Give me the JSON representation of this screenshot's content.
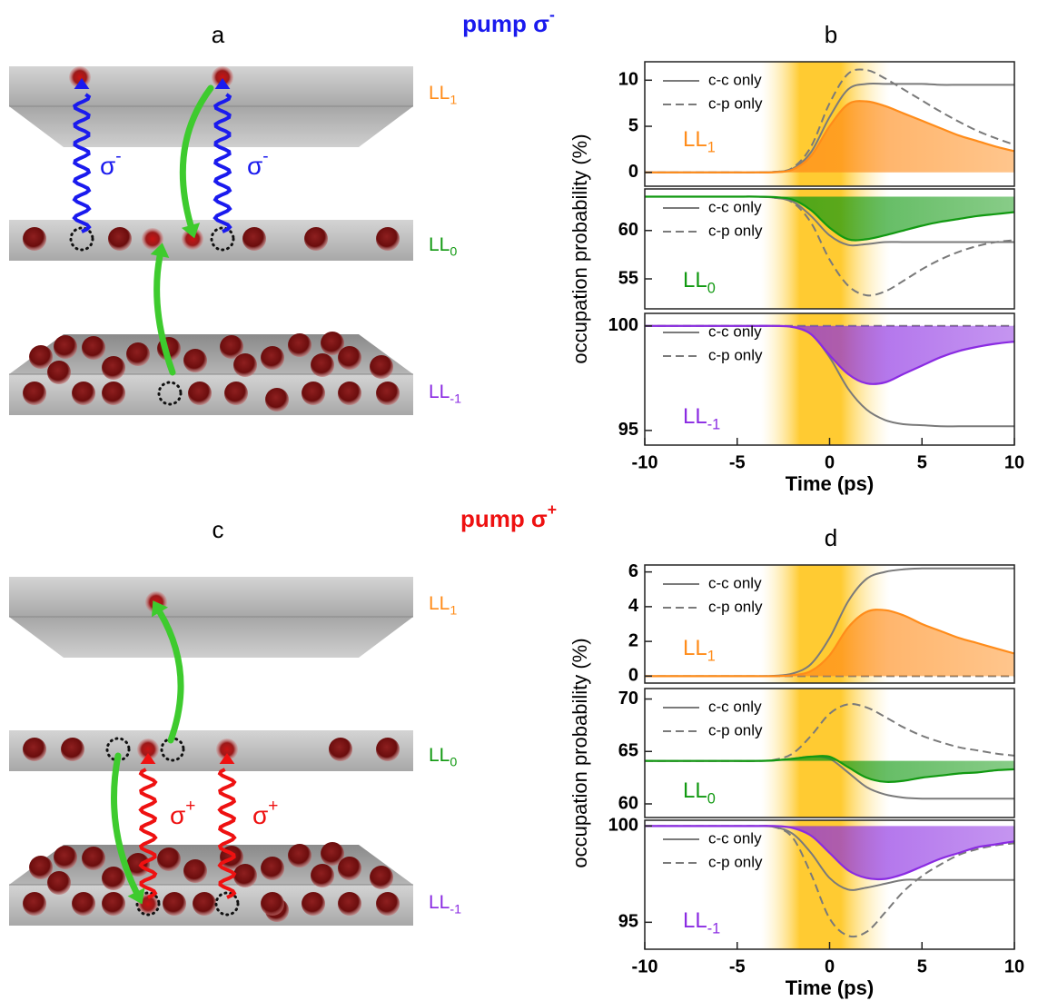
{
  "schematics": [
    {
      "panel": "a",
      "pump": {
        "text": "pump σ",
        "sup": "-"
      },
      "color": "#1a1aee",
      "levels": [
        {
          "text": "LL",
          "sub": "1",
          "color": "#ff8c1a"
        },
        {
          "text": "LL",
          "sub": "0",
          "color": "#119911"
        },
        {
          "text": "LL",
          "sub": "-1",
          "color": "#8a2be2"
        }
      ],
      "transitions": [
        {
          "text": "σ",
          "sup": "-"
        },
        {
          "text": "σ",
          "sup": "-"
        }
      ]
    },
    {
      "panel": "c",
      "pump": {
        "text": "pump σ",
        "sup": "+"
      },
      "color": "#ee1111",
      "levels": [
        {
          "text": "LL",
          "sub": "1",
          "color": "#ff8c1a"
        },
        {
          "text": "LL",
          "sub": "0",
          "color": "#119911"
        },
        {
          "text": "LL",
          "sub": "-1",
          "color": "#8a2be2"
        }
      ],
      "transitions": [
        {
          "text": "σ",
          "sup": "+"
        },
        {
          "text": "σ",
          "sup": "+"
        }
      ]
    }
  ],
  "chart_data": [
    {
      "type": "line",
      "title": "b",
      "x": [
        -10,
        -9,
        -8,
        -7,
        -6,
        -5,
        -4,
        -3,
        -2,
        -1,
        0,
        1,
        2,
        3,
        4,
        5,
        6,
        7,
        8,
        9,
        10
      ],
      "xlim": [
        -10,
        10
      ],
      "ylim": [
        -1.5,
        12
      ],
      "yticks": [
        0,
        5,
        10
      ],
      "label": {
        "text": "LL",
        "sub": "1"
      },
      "series": [
        {
          "name": "c-c only",
          "color": "#7a7a7a",
          "values": [
            0,
            0,
            0,
            0,
            0,
            0,
            0,
            0.05,
            0.4,
            2.2,
            6.0,
            9.0,
            9.6,
            9.6,
            9.6,
            9.6,
            9.5,
            9.5,
            9.5,
            9.5,
            9.5
          ]
        },
        {
          "name": "c-p only",
          "color": "#7a7a7a",
          "dash": true,
          "values": [
            0,
            0,
            0,
            0,
            0,
            0,
            0,
            0.05,
            0.5,
            2.8,
            7.5,
            10.7,
            11.1,
            10.2,
            9.0,
            7.8,
            6.6,
            5.5,
            4.5,
            3.7,
            3.0
          ]
        },
        {
          "color": "#ff8c1a",
          "fill": true,
          "values": [
            0,
            0,
            0,
            0,
            0,
            0,
            0,
            0.02,
            0.3,
            1.8,
            5.0,
            7.4,
            7.7,
            7.2,
            6.4,
            5.6,
            4.8,
            4.0,
            3.4,
            2.8,
            2.3
          ]
        }
      ]
    },
    {
      "type": "line",
      "x": [
        -10,
        -9,
        -8,
        -7,
        -6,
        -5,
        -4,
        -3,
        -2,
        -1,
        0,
        1,
        2,
        3,
        4,
        5,
        6,
        7,
        8,
        9,
        10
      ],
      "xlim": [
        -10,
        10
      ],
      "ylim": [
        51.9,
        64.3
      ],
      "yticks": [
        55,
        60
      ],
      "ylabel": "occupation probability (%)",
      "label": {
        "text": "LL",
        "sub": "0"
      },
      "series": [
        {
          "name": "c-c only",
          "color": "#7a7a7a",
          "values": [
            63.5,
            63.5,
            63.5,
            63.5,
            63.5,
            63.5,
            63.5,
            63.4,
            63.0,
            61.5,
            59.5,
            58.5,
            58.6,
            58.8,
            58.8,
            58.8,
            58.8,
            58.8,
            58.8,
            58.8,
            58.8
          ]
        },
        {
          "name": "c-p only",
          "color": "#7a7a7a",
          "dash": true,
          "values": [
            63.5,
            63.5,
            63.5,
            63.5,
            63.5,
            63.5,
            63.5,
            63.4,
            62.9,
            60.8,
            57.0,
            54.3,
            53.3,
            53.7,
            54.8,
            56.0,
            57.0,
            57.8,
            58.4,
            58.8,
            59.0
          ]
        },
        {
          "color": "#119911",
          "fill": true,
          "values": [
            63.5,
            63.5,
            63.5,
            63.5,
            63.5,
            63.5,
            63.5,
            63.45,
            63.2,
            62.1,
            60.3,
            59.1,
            59.1,
            59.5,
            60.0,
            60.5,
            60.9,
            61.2,
            61.5,
            61.7,
            61.9
          ]
        }
      ]
    },
    {
      "type": "line",
      "x": [
        -10,
        -9,
        -8,
        -7,
        -6,
        -5,
        -4,
        -3,
        -2,
        -1,
        0,
        1,
        2,
        3,
        4,
        5,
        6,
        7,
        8,
        9,
        10
      ],
      "xlim": [
        -10,
        10
      ],
      "ylim": [
        94.3,
        100.6
      ],
      "yticks": [
        95,
        100
      ],
      "xticks": [
        -10,
        -5,
        0,
        5,
        10
      ],
      "xlabel": "Time (ps)",
      "label": {
        "text": "LL",
        "sub": "-1"
      },
      "series": [
        {
          "name": "c-c only",
          "color": "#7a7a7a",
          "values": [
            100,
            100,
            100,
            100,
            100,
            100,
            100,
            100,
            99.95,
            99.6,
            98.5,
            97.0,
            96.0,
            95.5,
            95.3,
            95.25,
            95.2,
            95.2,
            95.2,
            95.2,
            95.2
          ]
        },
        {
          "name": "c-p only",
          "color": "#7a7a7a",
          "dash": true,
          "values": [
            100,
            100,
            100,
            100,
            100,
            100,
            100,
            100,
            100,
            100,
            100,
            100,
            100,
            100,
            100,
            100,
            100,
            100,
            100,
            100,
            100
          ]
        },
        {
          "color": "#8a2be2",
          "fill": true,
          "values": [
            100,
            100,
            100,
            100,
            100,
            100,
            100,
            100,
            99.95,
            99.6,
            98.6,
            97.7,
            97.25,
            97.3,
            97.7,
            98.1,
            98.5,
            98.8,
            99.0,
            99.15,
            99.25
          ]
        }
      ]
    },
    {
      "type": "line",
      "title": "d",
      "x": [
        -10,
        -9,
        -8,
        -7,
        -6,
        -5,
        -4,
        -3,
        -2,
        -1,
        0,
        1,
        2,
        3,
        4,
        5,
        6,
        7,
        8,
        9,
        10
      ],
      "xlim": [
        -10,
        10
      ],
      "ylim": [
        -0.4,
        6.4
      ],
      "yticks": [
        0,
        2,
        4,
        6
      ],
      "label": {
        "text": "LL",
        "sub": "1"
      },
      "series": [
        {
          "name": "c-c only",
          "color": "#7a7a7a",
          "values": [
            0,
            0,
            0,
            0,
            0,
            0,
            0,
            0.02,
            0.15,
            0.7,
            2.2,
            4.3,
            5.6,
            6.0,
            6.15,
            6.2,
            6.2,
            6.2,
            6.2,
            6.2,
            6.2
          ]
        },
        {
          "name": "c-p only",
          "color": "#7a7a7a",
          "dash": true,
          "values": [
            0,
            0,
            0,
            0,
            0,
            0,
            0,
            0,
            0,
            0,
            0,
            0,
            0,
            0,
            0,
            0,
            0,
            0,
            0,
            0,
            0
          ]
        },
        {
          "color": "#ff8c1a",
          "fill": true,
          "values": [
            0,
            0,
            0,
            0,
            0,
            0,
            0,
            0,
            0.05,
            0.3,
            1.2,
            2.8,
            3.7,
            3.8,
            3.5,
            3.0,
            2.6,
            2.2,
            1.9,
            1.6,
            1.3
          ]
        }
      ]
    },
    {
      "type": "line",
      "x": [
        -10,
        -9,
        -8,
        -7,
        -6,
        -5,
        -4,
        -3,
        -2,
        -1,
        0,
        1,
        2,
        3,
        4,
        5,
        6,
        7,
        8,
        9,
        10
      ],
      "xlim": [
        -10,
        10
      ],
      "ylim": [
        58.7,
        71.0
      ],
      "yticks": [
        60,
        65,
        70
      ],
      "ylabel": "occupation probability (%)",
      "label": {
        "text": "LL",
        "sub": "0"
      },
      "series": [
        {
          "name": "c-c only",
          "color": "#7a7a7a",
          "values": [
            64.1,
            64.1,
            64.1,
            64.1,
            64.1,
            64.1,
            64.1,
            64.15,
            64.3,
            64.5,
            64.3,
            63.0,
            61.6,
            60.9,
            60.6,
            60.5,
            60.5,
            60.5,
            60.5,
            60.5,
            60.5
          ]
        },
        {
          "name": "c-p only",
          "color": "#7a7a7a",
          "dash": true,
          "values": [
            64.1,
            64.1,
            64.1,
            64.1,
            64.1,
            64.1,
            64.1,
            64.2,
            64.8,
            66.5,
            68.6,
            69.5,
            69.2,
            68.3,
            67.3,
            66.5,
            65.9,
            65.4,
            65.1,
            64.8,
            64.6
          ]
        },
        {
          "color": "#119911",
          "fill": true,
          "values": [
            64.1,
            64.1,
            64.1,
            64.1,
            64.1,
            64.1,
            64.1,
            64.15,
            64.3,
            64.5,
            64.5,
            63.5,
            62.5,
            62.1,
            62.2,
            62.5,
            62.7,
            62.9,
            63.0,
            63.2,
            63.3
          ]
        }
      ]
    },
    {
      "type": "line",
      "x": [
        -10,
        -9,
        -8,
        -7,
        -6,
        -5,
        -4,
        -3,
        -2,
        -1,
        0,
        1,
        2,
        3,
        4,
        5,
        6,
        7,
        8,
        9,
        10
      ],
      "xlim": [
        -10,
        10
      ],
      "ylim": [
        93.6,
        100.3
      ],
      "yticks": [
        95,
        100
      ],
      "xticks": [
        -10,
        -5,
        0,
        5,
        10
      ],
      "xlabel": "Time (ps)",
      "label": {
        "text": "LL",
        "sub": "-1"
      },
      "series": [
        {
          "name": "c-c only",
          "color": "#7a7a7a",
          "values": [
            100,
            100,
            100,
            100,
            100,
            100,
            100,
            99.95,
            99.6,
            98.6,
            97.3,
            96.7,
            96.8,
            97.0,
            97.2,
            97.2,
            97.2,
            97.2,
            97.2,
            97.2,
            97.2
          ]
        },
        {
          "name": "c-p only",
          "color": "#7a7a7a",
          "dash": true,
          "values": [
            100,
            100,
            100,
            100,
            100,
            100,
            100,
            99.95,
            99.4,
            97.5,
            95.2,
            94.3,
            94.5,
            95.5,
            96.6,
            97.4,
            98.0,
            98.5,
            98.8,
            99.0,
            99.1
          ]
        },
        {
          "color": "#8a2be2",
          "fill": true,
          "values": [
            100,
            100,
            100,
            100,
            100,
            100,
            100,
            100,
            99.9,
            99.5,
            98.6,
            97.7,
            97.3,
            97.25,
            97.5,
            97.9,
            98.3,
            98.6,
            98.9,
            99.05,
            99.2
          ]
        }
      ]
    }
  ]
}
